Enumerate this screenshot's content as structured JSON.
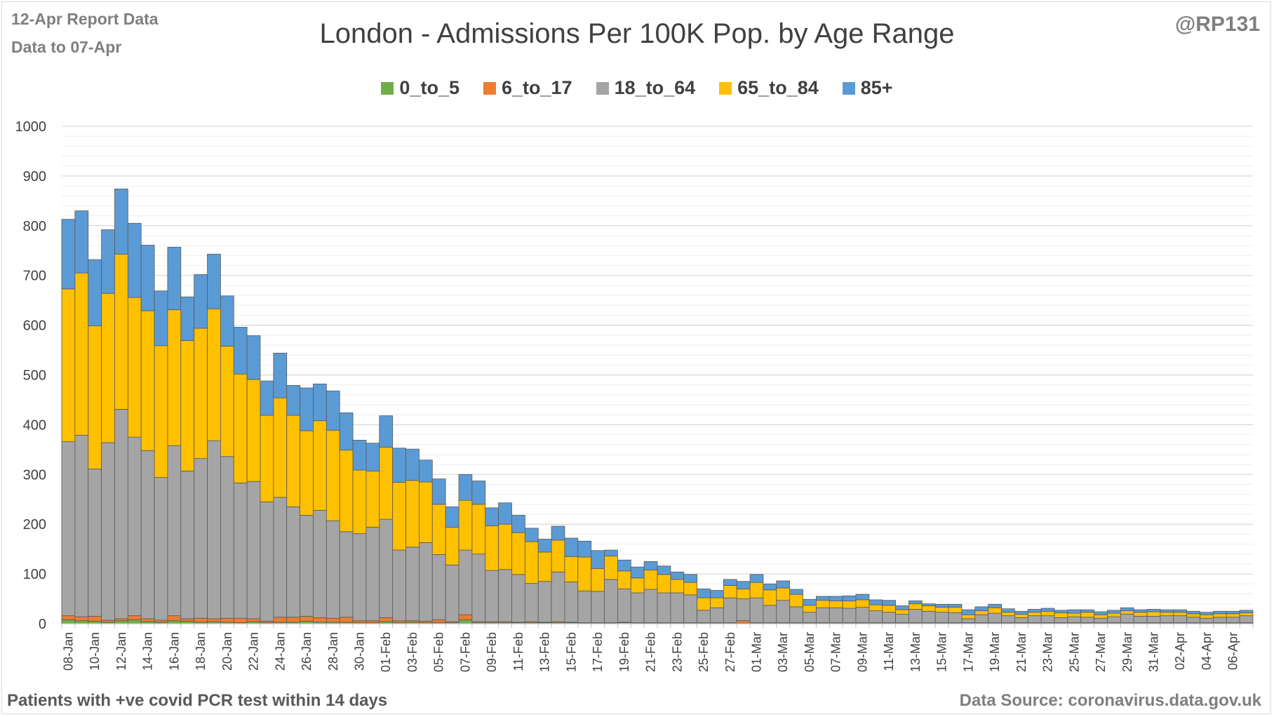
{
  "header": {
    "report_line": "12-Apr Report Data",
    "data_line": "Data to 07-Apr",
    "handle": "@RP131"
  },
  "footer": {
    "note": "Patients with  +ve covid PCR test within 14 days",
    "source": "Data Source: coronavirus.data.gov.uk"
  },
  "chart_data": {
    "type": "bar",
    "stacked": true,
    "title": "London - Admissions Per 100K Pop. by Age Range",
    "xlabel": "",
    "ylabel": "",
    "ylim": [
      0,
      1000
    ],
    "y_ticks": [
      0,
      100,
      200,
      300,
      400,
      500,
      600,
      700,
      800,
      900,
      1000
    ],
    "grid": true,
    "legend_position": "top",
    "x_tick_labels": [
      "08-Jan",
      "10-Jan",
      "12-Jan",
      "14-Jan",
      "16-Jan",
      "18-Jan",
      "20-Jan",
      "22-Jan",
      "24-Jan",
      "26-Jan",
      "28-Jan",
      "30-Jan",
      "01-Feb",
      "03-Feb",
      "05-Feb",
      "07-Feb",
      "09-Feb",
      "11-Feb",
      "13-Feb",
      "15-Feb",
      "17-Feb",
      "19-Feb",
      "21-Feb",
      "23-Feb",
      "25-Feb",
      "27-Feb",
      "01-Mar",
      "03-Mar",
      "05-Mar",
      "07-Mar",
      "09-Mar",
      "11-Mar",
      "13-Mar",
      "15-Mar",
      "17-Mar",
      "19-Mar",
      "21-Mar",
      "23-Mar",
      "25-Mar",
      "27-Mar",
      "29-Mar",
      "31-Mar",
      "02-Apr",
      "04-Apr",
      "06-Apr"
    ],
    "categories": [
      "08-Jan",
      "09-Jan",
      "10-Jan",
      "11-Jan",
      "12-Jan",
      "13-Jan",
      "14-Jan",
      "15-Jan",
      "16-Jan",
      "17-Jan",
      "18-Jan",
      "19-Jan",
      "20-Jan",
      "21-Jan",
      "22-Jan",
      "23-Jan",
      "24-Jan",
      "25-Jan",
      "26-Jan",
      "27-Jan",
      "28-Jan",
      "29-Jan",
      "30-Jan",
      "31-Jan",
      "01-Feb",
      "02-Feb",
      "03-Feb",
      "04-Feb",
      "05-Feb",
      "06-Feb",
      "07-Feb",
      "08-Feb",
      "09-Feb",
      "10-Feb",
      "11-Feb",
      "12-Feb",
      "13-Feb",
      "14-Feb",
      "15-Feb",
      "16-Feb",
      "17-Feb",
      "18-Feb",
      "19-Feb",
      "20-Feb",
      "21-Feb",
      "22-Feb",
      "23-Feb",
      "24-Feb",
      "25-Feb",
      "26-Feb",
      "27-Feb",
      "28-Feb",
      "01-Mar",
      "02-Mar",
      "03-Mar",
      "04-Mar",
      "05-Mar",
      "06-Mar",
      "07-Mar",
      "08-Mar",
      "09-Mar",
      "10-Mar",
      "11-Mar",
      "12-Mar",
      "13-Mar",
      "14-Mar",
      "15-Mar",
      "16-Mar",
      "17-Mar",
      "18-Mar",
      "19-Mar",
      "20-Mar",
      "21-Mar",
      "22-Mar",
      "23-Mar",
      "24-Mar",
      "25-Mar",
      "26-Mar",
      "27-Mar",
      "28-Mar",
      "29-Mar",
      "30-Mar",
      "31-Mar",
      "01-Apr",
      "02-Apr",
      "03-Apr",
      "04-Apr",
      "05-Apr",
      "06-Apr",
      "07-Apr"
    ],
    "series": [
      {
        "name": "0_to_5",
        "color": "#70ad47",
        "values": [
          8,
          6,
          5,
          3,
          6,
          8,
          4,
          3,
          6,
          5,
          3,
          4,
          3,
          2,
          4,
          2,
          3,
          3,
          5,
          3,
          3,
          3,
          2,
          2,
          4,
          2,
          3,
          2,
          2,
          2,
          8,
          2,
          2,
          2,
          2,
          2,
          2,
          2,
          2,
          1,
          1,
          1,
          2,
          1,
          1,
          1,
          1,
          1,
          1,
          1,
          1,
          1,
          1,
          1,
          1,
          1,
          1,
          1,
          1,
          1,
          1,
          1,
          1,
          1,
          1,
          1,
          1,
          1,
          1,
          1,
          1,
          1,
          1,
          1,
          1,
          1,
          1,
          1,
          1,
          1,
          1,
          1,
          1,
          1,
          1,
          1,
          1,
          1,
          1,
          1
        ]
      },
      {
        "name": "6_to_17",
        "color": "#ed7d31",
        "values": [
          8,
          8,
          10,
          4,
          4,
          8,
          6,
          4,
          10,
          5,
          8,
          6,
          8,
          9,
          6,
          3,
          10,
          10,
          10,
          9,
          8,
          10,
          4,
          4,
          8,
          4,
          3,
          3,
          6,
          2,
          10,
          2,
          2,
          2,
          1,
          2,
          1,
          2,
          1,
          1,
          1,
          1,
          1,
          1,
          1,
          1,
          1,
          1,
          1,
          1,
          1,
          5,
          1,
          1,
          1,
          1,
          1,
          1,
          1,
          1,
          1,
          1,
          1,
          1,
          1,
          1,
          1,
          1,
          1,
          1,
          1,
          1,
          1,
          1,
          1,
          1,
          1,
          1,
          1,
          1,
          1,
          1,
          1,
          1,
          1,
          1,
          1,
          1,
          1,
          1
        ]
      },
      {
        "name": "18_to_64",
        "color": "#a5a5a5",
        "values": [
          350,
          365,
          296,
          357,
          421,
          359,
          338,
          287,
          342,
          297,
          321,
          358,
          325,
          272,
          276,
          240,
          241,
          222,
          203,
          216,
          196,
          172,
          175,
          188,
          198,
          142,
          148,
          158,
          131,
          114,
          130,
          136,
          103,
          105,
          96,
          77,
          82,
          100,
          81,
          64,
          63,
          87,
          67,
          60,
          67,
          60,
          60,
          56,
          25,
          30,
          50,
          44,
          50,
          35,
          45,
          32,
          21,
          30,
          30,
          29,
          31,
          24,
          21,
          17,
          27,
          23,
          21,
          20,
          8,
          16,
          19,
          14,
          10,
          14,
          14,
          10,
          12,
          11,
          9,
          12,
          17,
          13,
          13,
          14,
          14,
          11,
          9,
          11,
          11,
          14
        ]
      },
      {
        "name": "65_to_84",
        "color": "#ffc000",
        "values": [
          307,
          326,
          288,
          300,
          312,
          281,
          281,
          265,
          273,
          262,
          262,
          265,
          222,
          219,
          205,
          174,
          200,
          184,
          170,
          180,
          182,
          164,
          128,
          113,
          145,
          136,
          134,
          122,
          101,
          76,
          100,
          100,
          90,
          91,
          84,
          84,
          59,
          64,
          51,
          68,
          46,
          47,
          36,
          30,
          39,
          37,
          27,
          25,
          25,
          20,
          25,
          20,
          31,
          31,
          25,
          25,
          14,
          15,
          14,
          15,
          15,
          12,
          14,
          9,
          11,
          11,
          10,
          11,
          8,
          8,
          11,
          7,
          7,
          7,
          9,
          10,
          7,
          10,
          7,
          7,
          7,
          8,
          9,
          7,
          7,
          7,
          7,
          7,
          7,
          6
        ]
      },
      {
        "name": "85+",
        "color": "#5b9bd5",
        "values": [
          140,
          125,
          133,
          128,
          131,
          149,
          132,
          110,
          126,
          88,
          108,
          110,
          101,
          94,
          88,
          69,
          90,
          60,
          86,
          74,
          79,
          75,
          60,
          56,
          63,
          69,
          63,
          44,
          51,
          41,
          52,
          47,
          36,
          43,
          35,
          27,
          26,
          28,
          37,
          32,
          36,
          12,
          22,
          22,
          17,
          17,
          15,
          16,
          18,
          15,
          12,
          15,
          16,
          12,
          14,
          10,
          12,
          8,
          9,
          10,
          11,
          10,
          10,
          8,
          6,
          4,
          6,
          6,
          10,
          8,
          7,
          7,
          6,
          6,
          6,
          5,
          7,
          5,
          6,
          6,
          6,
          5,
          5,
          5,
          5,
          5,
          5,
          5,
          5,
          5
        ]
      }
    ]
  }
}
